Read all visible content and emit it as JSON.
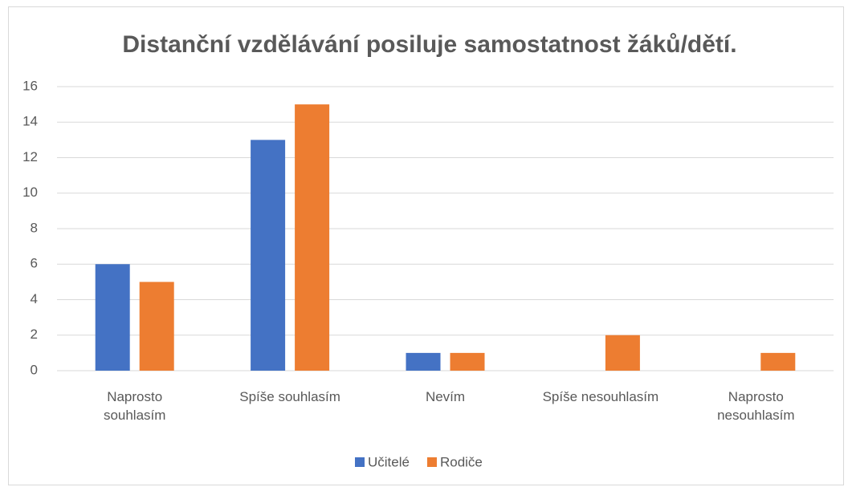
{
  "chart_data": {
    "type": "bar",
    "title": "Distanční vzdělávání posiluje samostatnost žáků/dětí.",
    "categories": [
      "Naprosto souhlasím",
      "Spíše souhlasím",
      "Nevím",
      "Spíše nesouhlasím",
      "Naprosto nesouhlasím"
    ],
    "series": [
      {
        "name": "Učitelé",
        "color": "#4472c4",
        "values": [
          6,
          13,
          1,
          0,
          0
        ]
      },
      {
        "name": "Rodiče",
        "color": "#ed7d31",
        "values": [
          5,
          15,
          1,
          2,
          1
        ]
      }
    ],
    "ylim": [
      0,
      16
    ],
    "yticks": [
      0,
      2,
      4,
      6,
      8,
      10,
      12,
      14,
      16
    ],
    "grid": true,
    "legend": "bottom"
  }
}
